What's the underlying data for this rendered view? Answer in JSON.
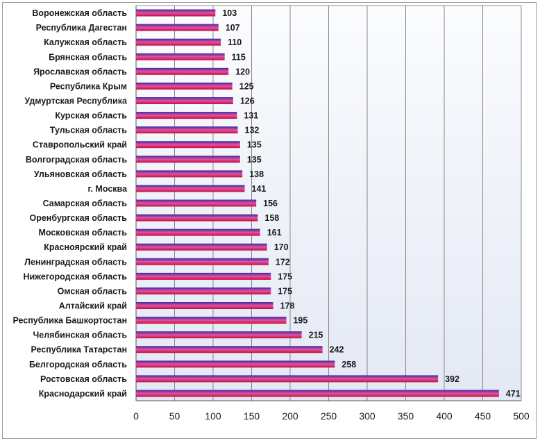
{
  "chart_data": {
    "type": "bar",
    "orientation": "horizontal",
    "categories": [
      "Воронежская область",
      "Республика Дагестан",
      "Калужская область",
      "Брянская область",
      "Ярославская область",
      "Республика Крым",
      "Удмуртская Республика",
      "Курская область",
      "Тульская область",
      "Ставропольский край",
      "Волгоградская область",
      "Ульяновская область",
      "г. Москва",
      "Самарская область",
      "Оренбургская область",
      "Московская область",
      "Красноярский край",
      "Ленинградская область",
      "Нижегородская область",
      "Омская область",
      "Алтайский край",
      "Республика Башкортостан",
      "Челябинская область",
      "Республика Татарстан",
      "Белгородская область",
      "Ростовская область",
      "Краснодарский край"
    ],
    "values": [
      103,
      107,
      110,
      115,
      120,
      125,
      126,
      131,
      132,
      135,
      135,
      138,
      141,
      156,
      158,
      161,
      170,
      172,
      175,
      175,
      178,
      195,
      215,
      242,
      258,
      392,
      471
    ],
    "xlim": [
      0,
      500
    ],
    "xticks": [
      "0",
      "50",
      "100",
      "150",
      "200",
      "250",
      "300",
      "350",
      "400",
      "450",
      "500"
    ],
    "grid": true,
    "legend": "none",
    "title": "",
    "xlabel": "",
    "ylabel": ""
  },
  "colors": {
    "bar_top": "#3a2aa8",
    "bar_mid": "#e6519a",
    "bar_bottom": "#c0104a",
    "plot_bg_top": "#fbfcfe",
    "plot_bg_bottom": "#e3e8f4",
    "gridline": "#8a8a8a"
  }
}
